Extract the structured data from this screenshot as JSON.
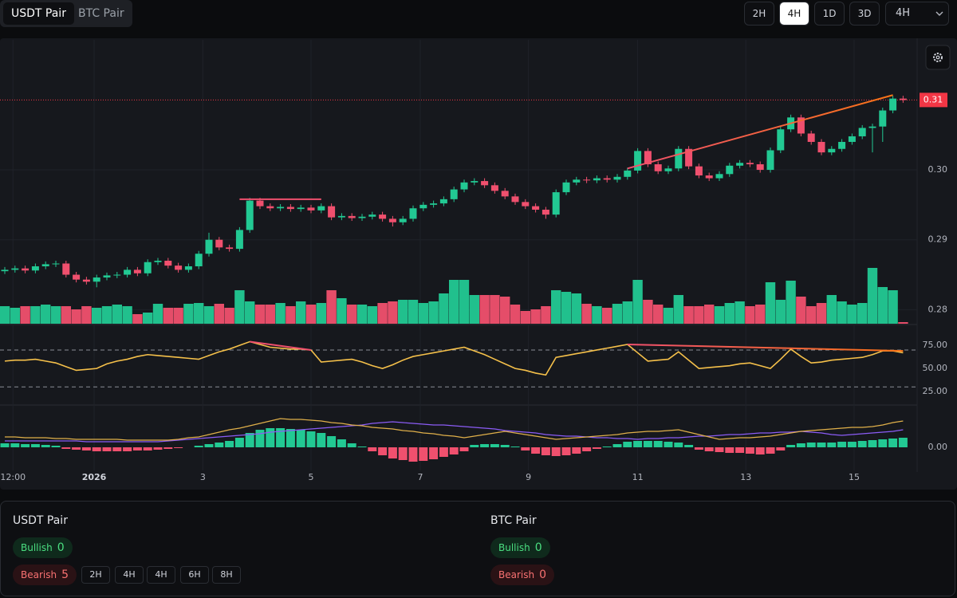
{
  "tabs": [
    "USDT Pair",
    "BTC Pair"
  ],
  "active_tab": 0,
  "timeframes": [
    "2H",
    "4H",
    "1D",
    "3D"
  ],
  "active_timeframe": 1,
  "timeframe_select": "4H",
  "chart_data": [
    {
      "type": "candlestick",
      "up_color": "#22c993",
      "down_color": "#f0506e",
      "grid": true,
      "ylim": [
        0.2781,
        0.3186
      ],
      "yticks": [
        0.28,
        0.29,
        {
          "value": 0.3,
          "label": "0.30"
        }
      ],
      "last_price": 0.31,
      "last_price_color": "#f23645",
      "xticks": [
        {
          "value": 0.8,
          "label": "12:00"
        },
        {
          "value": 8.75,
          "label": "2026"
        },
        {
          "value": 19.4,
          "label": "3"
        },
        {
          "value": 30.0,
          "label": "5"
        },
        {
          "value": 40.7,
          "label": "7"
        },
        {
          "value": 51.3,
          "label": "9"
        },
        {
          "value": 62.0,
          "label": "11"
        },
        {
          "value": 72.6,
          "label": "13"
        },
        {
          "value": 83.2,
          "label": "15"
        }
      ],
      "open": [
        0.2855,
        0.2857,
        0.2859,
        0.2856,
        0.2862,
        0.2865,
        0.2866,
        0.285,
        0.2843,
        0.284,
        0.2846,
        0.2849,
        0.285,
        0.2857,
        0.2852,
        0.2868,
        0.287,
        0.2863,
        0.2857,
        0.2862,
        0.288,
        0.29,
        0.2889,
        0.2887,
        0.2914,
        0.2956,
        0.2948,
        0.2945,
        0.2947,
        0.2944,
        0.2946,
        0.2942,
        0.2948,
        0.2932,
        0.2934,
        0.2931,
        0.2933,
        0.2936,
        0.293,
        0.2925,
        0.293,
        0.2945,
        0.295,
        0.2952,
        0.2958,
        0.2972,
        0.2982,
        0.2984,
        0.2978,
        0.297,
        0.2962,
        0.2954,
        0.2948,
        0.2943,
        0.2936,
        0.2968,
        0.2982,
        0.2986,
        0.2985,
        0.2988,
        0.2986,
        0.299,
        0.2999,
        0.3027,
        0.3008,
        0.2998,
        0.3002,
        0.303,
        0.3005,
        0.2992,
        0.2988,
        0.2994,
        0.3006,
        0.301,
        0.3008,
        0.3,
        0.3028,
        0.3058,
        0.3075,
        0.3052,
        0.304,
        0.3025,
        0.303,
        0.304,
        0.3048,
        0.306,
        0.3062,
        0.3085,
        0.3102
      ],
      "high": [
        0.2861,
        0.2863,
        0.2863,
        0.2866,
        0.2869,
        0.287,
        0.287,
        0.2854,
        0.2847,
        0.285,
        0.2853,
        0.2854,
        0.2861,
        0.2861,
        0.2872,
        0.2874,
        0.2874,
        0.2867,
        0.2866,
        0.2884,
        0.291,
        0.2904,
        0.2893,
        0.2918,
        0.296,
        0.296,
        0.2952,
        0.2951,
        0.2951,
        0.295,
        0.295,
        0.2952,
        0.2952,
        0.2938,
        0.2938,
        0.2937,
        0.294,
        0.294,
        0.2934,
        0.2934,
        0.2949,
        0.2954,
        0.2956,
        0.2962,
        0.2976,
        0.2986,
        0.2988,
        0.2988,
        0.2982,
        0.2974,
        0.2966,
        0.2958,
        0.2952,
        0.2947,
        0.2972,
        0.2986,
        0.299,
        0.299,
        0.2992,
        0.2992,
        0.2994,
        0.3003,
        0.3031,
        0.3031,
        0.3012,
        0.3006,
        0.3034,
        0.3034,
        0.3009,
        0.2996,
        0.2998,
        0.301,
        0.3014,
        0.3014,
        0.3012,
        0.3032,
        0.3062,
        0.3079,
        0.3079,
        0.3056,
        0.3044,
        0.3034,
        0.3044,
        0.3052,
        0.3064,
        0.3066,
        0.3089,
        0.3106,
        0.3106
      ],
      "low": [
        0.2851,
        0.2853,
        0.2852,
        0.2852,
        0.2858,
        0.2861,
        0.2846,
        0.2839,
        0.2836,
        0.2832,
        0.2842,
        0.2845,
        0.2846,
        0.2848,
        0.2848,
        0.2864,
        0.2859,
        0.2853,
        0.2853,
        0.2858,
        0.2876,
        0.2885,
        0.2883,
        0.2883,
        0.291,
        0.2944,
        0.2941,
        0.2941,
        0.294,
        0.294,
        0.2938,
        0.2938,
        0.2928,
        0.2928,
        0.2927,
        0.2927,
        0.2929,
        0.2926,
        0.2919,
        0.2921,
        0.2926,
        0.2941,
        0.2946,
        0.2948,
        0.2954,
        0.2968,
        0.2978,
        0.2974,
        0.2966,
        0.2958,
        0.295,
        0.2944,
        0.2939,
        0.293,
        0.2932,
        0.2964,
        0.2978,
        0.2981,
        0.2981,
        0.2982,
        0.2982,
        0.2986,
        0.2995,
        0.3004,
        0.2994,
        0.2994,
        0.2998,
        0.3001,
        0.2988,
        0.2984,
        0.2984,
        0.299,
        0.3002,
        0.3004,
        0.2996,
        0.2996,
        0.3024,
        0.3054,
        0.3048,
        0.3036,
        0.3021,
        0.3021,
        0.3026,
        0.3036,
        0.3044,
        0.3025,
        0.304,
        0.3081,
        0.3096
      ],
      "close": [
        0.2857,
        0.2859,
        0.2856,
        0.2862,
        0.2865,
        0.2866,
        0.285,
        0.2843,
        0.284,
        0.2846,
        0.2849,
        0.285,
        0.2857,
        0.2852,
        0.2868,
        0.287,
        0.2863,
        0.2857,
        0.2862,
        0.288,
        0.29,
        0.2889,
        0.2887,
        0.2914,
        0.2956,
        0.2948,
        0.2945,
        0.2947,
        0.2944,
        0.2946,
        0.2942,
        0.2948,
        0.2932,
        0.2934,
        0.2931,
        0.2933,
        0.2936,
        0.293,
        0.2925,
        0.293,
        0.2945,
        0.295,
        0.2952,
        0.2958,
        0.2972,
        0.2982,
        0.2984,
        0.2978,
        0.297,
        0.2962,
        0.2954,
        0.2948,
        0.2943,
        0.2936,
        0.2968,
        0.2982,
        0.2986,
        0.2985,
        0.2988,
        0.2986,
        0.299,
        0.2999,
        0.3027,
        0.3008,
        0.2998,
        0.3002,
        0.303,
        0.3005,
        0.2992,
        0.2988,
        0.2994,
        0.3006,
        0.301,
        0.3008,
        0.3,
        0.3028,
        0.3058,
        0.3075,
        0.3052,
        0.304,
        0.3025,
        0.303,
        0.304,
        0.3048,
        0.306,
        0.3062,
        0.3085,
        0.3102,
        0.31
      ],
      "volume": {
        "ylim": [
          0,
          100
        ],
        "values": [
          22,
          20,
          22,
          22,
          24,
          22,
          22,
          18,
          22,
          20,
          22,
          24,
          22,
          12,
          14,
          25,
          20,
          20,
          25,
          26,
          22,
          25,
          20,
          42,
          28,
          24,
          24,
          26,
          22,
          28,
          24,
          26,
          42,
          32,
          24,
          24,
          22,
          26,
          28,
          30,
          30,
          26,
          28,
          38,
          55,
          55,
          36,
          36,
          36,
          34,
          24,
          16,
          18,
          22,
          42,
          40,
          38,
          25,
          22,
          20,
          25,
          28,
          55,
          30,
          24,
          20,
          36,
          22,
          22,
          24,
          22,
          26,
          28,
          22,
          24,
          52,
          30,
          54,
          34,
          22,
          26,
          36,
          28,
          24,
          26,
          70,
          46,
          42,
          2
        ]
      },
      "divergences": [
        {
          "from": [
            23,
            0.2958
          ],
          "to": [
            31,
            0.2958
          ],
          "color": "#f0506e"
        },
        {
          "from": [
            61,
            0.3002
          ],
          "to": [
            87,
            0.3107
          ],
          "color": "#f0506e",
          "color_end": "#f97316"
        }
      ]
    },
    {
      "type": "line",
      "color": "#f5c04a",
      "ylim": [
        13,
        95
      ],
      "yticks": [
        {
          "value": 25,
          "label": "25.00"
        },
        {
          "value": 50,
          "label": "50.00"
        },
        {
          "value": 75,
          "label": "75.00"
        }
      ],
      "levels": [
        70,
        30
      ],
      "values": [
        58,
        59,
        59,
        60,
        58,
        56,
        52,
        48,
        49,
        50,
        55,
        58,
        60,
        63,
        65,
        64,
        63,
        62,
        61,
        60,
        64,
        68,
        71,
        75,
        79,
        76,
        73,
        72,
        71,
        71,
        70,
        57,
        58,
        59,
        60,
        57,
        53,
        50,
        54,
        59,
        63,
        65,
        67,
        69,
        71,
        73,
        69,
        65,
        60,
        55,
        50,
        48,
        45,
        43,
        62,
        64,
        66,
        68,
        70,
        72,
        74,
        76,
        67,
        58,
        59,
        60,
        68,
        59,
        50,
        51,
        52,
        53,
        55,
        56,
        53,
        50,
        60,
        71,
        63,
        56,
        57,
        59,
        60,
        61,
        62,
        65,
        69,
        69,
        67
      ],
      "divergences": [
        {
          "from": [
            24,
            79
          ],
          "to": [
            30,
            70
          ],
          "color": "#f0506e"
        },
        {
          "from": [
            61,
            76
          ],
          "to": [
            88,
            69
          ],
          "color": "#f0506e",
          "color_end": "#f97316"
        }
      ]
    },
    {
      "type": "macd",
      "up_color": "#22c993",
      "down_color": "#f0506e",
      "macd_color": "#e0b04a",
      "signal_color": "#8b5cf6",
      "ylim": [
        -0.00029,
        0.00051
      ],
      "yticks": [
        {
          "value": 0,
          "label": "0.00"
        }
      ],
      "histogram": [
        5e-05,
        5e-05,
        4e-05,
        4e-05,
        3e-05,
        2e-05,
        -2e-05,
        -3e-05,
        -4e-05,
        -5e-05,
        -5e-05,
        -5e-05,
        -5e-05,
        -4e-05,
        -4e-05,
        -3e-05,
        -2e-05,
        -1e-05,
        0,
        2e-05,
        4e-05,
        6e-05,
        8e-05,
        0.00012,
        0.00018,
        0.00022,
        0.00024,
        0.00024,
        0.00023,
        0.00022,
        0.0002,
        0.00018,
        0.00014,
        0.0001,
        5e-05,
        1e-05,
        -5e-05,
        -0.0001,
        -0.00014,
        -0.00016,
        -0.00018,
        -0.00017,
        -0.00015,
        -0.00012,
        -9e-05,
        -5e-05,
        3e-05,
        4e-05,
        4e-05,
        3e-05,
        1e-05,
        -4e-05,
        -8e-05,
        -0.0001,
        -0.00011,
        -0.0001,
        -8e-05,
        -5e-05,
        -2e-05,
        1e-05,
        4e-05,
        7e-05,
        8e-05,
        8e-05,
        8e-05,
        7e-05,
        6e-05,
        3e-05,
        -3e-05,
        -5e-05,
        -6e-05,
        -7e-05,
        -7e-05,
        -8e-05,
        -9e-05,
        -8e-05,
        -4e-05,
        3e-05,
        5e-05,
        6e-05,
        6e-05,
        6e-05,
        7e-05,
        7e-05,
        8e-05,
        9e-05,
        0.0001,
        0.00011,
        0.00012
      ],
      "macd": [
        0.00013,
        0.00013,
        0.00012,
        0.00012,
        0.00012,
        0.00011,
        0.00011,
        0.0001,
        0.0001,
        0.0001,
        0.0001,
        0.0001,
        9e-05,
        9e-05,
        9e-05,
        9e-05,
        9e-05,
        0.0001,
        0.00012,
        0.00013,
        0.00016,
        0.00019,
        0.00022,
        0.00024,
        0.00027,
        0.0003,
        0.00033,
        0.00036,
        0.00035,
        0.00035,
        0.00034,
        0.00033,
        0.00031,
        0.0003,
        0.00028,
        0.00027,
        0.00025,
        0.00024,
        0.00023,
        0.00021,
        0.0002,
        0.00018,
        0.00017,
        0.00015,
        0.00014,
        0.00012,
        0.00014,
        0.00016,
        0.00018,
        0.0002,
        0.00018,
        0.00016,
        0.00014,
        0.00012,
        0.0001,
        0.00011,
        0.00012,
        0.00013,
        0.00014,
        0.00015,
        0.00016,
        0.00018,
        0.00019,
        0.0002,
        0.0002,
        0.00021,
        0.00022,
        0.00019,
        0.00016,
        0.00013,
        0.0001,
        0.00011,
        0.00012,
        0.00012,
        0.00013,
        0.00014,
        0.00016,
        0.00018,
        0.0002,
        0.00021,
        0.00022,
        0.00023,
        0.00024,
        0.00025,
        0.00025,
        0.00026,
        0.00028,
        0.00031,
        0.00033
      ],
      "signal": [
        8e-05,
        8e-05,
        8e-05,
        8e-05,
        8e-05,
        8e-05,
        8e-05,
        8e-05,
        7e-05,
        7e-05,
        7e-05,
        7e-05,
        7e-05,
        7e-05,
        7e-05,
        7e-05,
        8e-05,
        9e-05,
        0.0001,
        0.00011,
        0.00012,
        0.00013,
        0.00014,
        0.00015,
        0.00016,
        0.00017,
        0.00019,
        0.0002,
        0.00021,
        0.00022,
        0.00023,
        0.00024,
        0.00025,
        0.00026,
        0.00027,
        0.00028,
        0.0003,
        0.00031,
        0.00032,
        0.00031,
        0.0003,
        0.00029,
        0.00028,
        0.00028,
        0.00027,
        0.00026,
        0.00025,
        0.00024,
        0.00023,
        0.00021,
        0.0002,
        0.00019,
        0.00018,
        0.00016,
        0.00015,
        0.00014,
        0.00014,
        0.00013,
        0.00012,
        0.00012,
        0.00011,
        0.00011,
        0.0001,
        0.00011,
        0.00011,
        0.00012,
        0.00012,
        0.00013,
        0.00014,
        0.00014,
        0.00015,
        0.00016,
        0.00016,
        0.00017,
        0.00018,
        0.00018,
        0.00019,
        0.00019,
        0.0002,
        0.00019,
        0.00018,
        0.00016,
        0.00015,
        0.00016,
        0.00017,
        0.00018,
        0.00019,
        0.0002,
        0.00022
      ]
    }
  ],
  "summary": [
    {
      "title": "USDT Pair",
      "bullish": {
        "label": "Bullish",
        "count": 0
      },
      "bearish": {
        "label": "Bearish",
        "count": 5
      },
      "timeframes": [
        "2H",
        "4H",
        "4H",
        "6H",
        "8H"
      ]
    },
    {
      "title": "BTC Pair",
      "bullish": {
        "label": "Bullish",
        "count": 0
      },
      "bearish": {
        "label": "Bearish",
        "count": 0
      }
    }
  ]
}
